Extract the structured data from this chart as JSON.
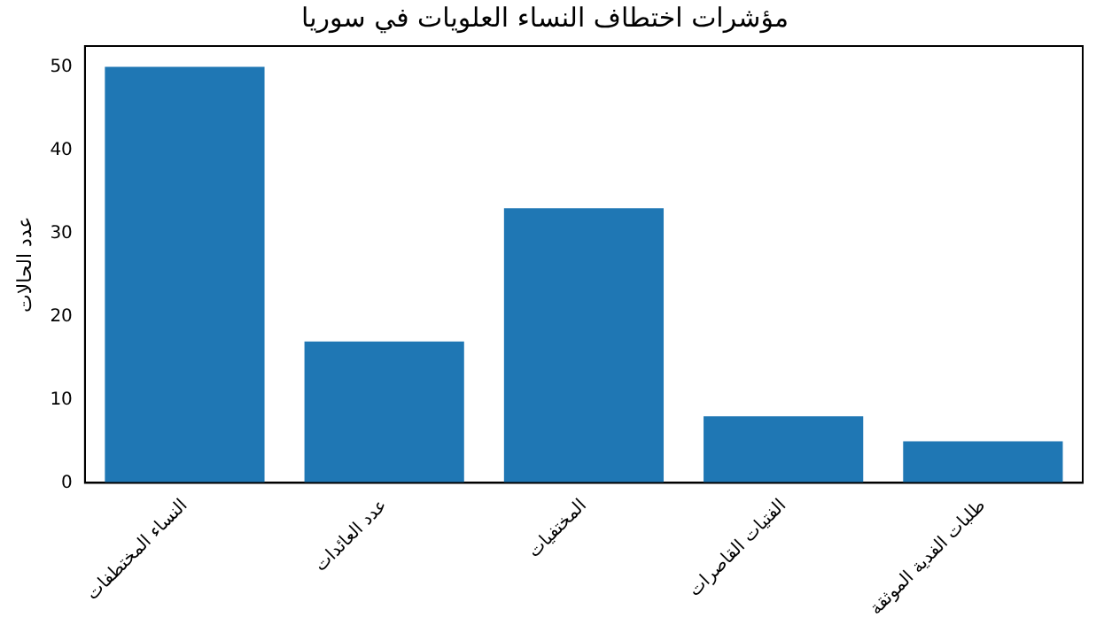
{
  "chart_data": {
    "type": "bar",
    "title": "مؤشرات اختطاف النساء العلويات في سوريا",
    "ylabel": "عدد الحالات",
    "categories": [
      "النساء المختطفات",
      "عدد العائدات",
      "المختفيات",
      "الفتيات القاصرات",
      "طلبات الفدية الموثقة"
    ],
    "values": [
      50,
      17,
      33,
      8,
      5
    ],
    "color": "#1f77b4",
    "ylim": [
      0,
      52.5
    ],
    "yticks": [
      0,
      10,
      20,
      30,
      40,
      50
    ],
    "grid": false,
    "legend": false
  }
}
